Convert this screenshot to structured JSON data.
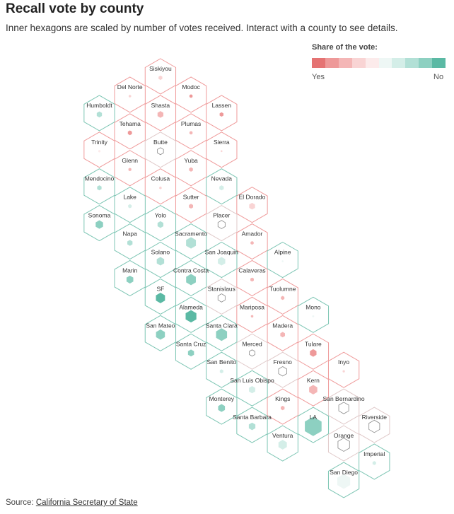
{
  "title": "Recall vote by county",
  "subtitle": "Inner hexagons are scaled by number of votes received. Interact with a county to see details.",
  "legend": {
    "title": "Share of the vote:",
    "yes_label": "Yes",
    "no_label": "No",
    "colors": [
      "#e57373",
      "#ee9999",
      "#f4b6b6",
      "#f9d4d4",
      "#fcebeb",
      "#eef7f5",
      "#d4eee8",
      "#b2e0d6",
      "#8dd0c1",
      "#5bb9a4"
    ]
  },
  "source": {
    "prefix": "Source: ",
    "link_text": "California Secretary of State"
  },
  "chart_data": {
    "type": "hex-tile-map",
    "title": "Recall vote by county",
    "encoding": {
      "lean": "Share of the vote leaning Yes (negative) or No (positive), -1 to 1, read from legend color",
      "votes": "Relative number of votes received (0 to 1), read from inner hexagon size"
    },
    "counties": [
      {
        "name": "Siskiyou",
        "col": 5,
        "row": 0,
        "lean": -0.35,
        "votes": 0.12
      },
      {
        "name": "Del Norte",
        "col": 4,
        "row": 1,
        "lean": -0.25,
        "votes": 0.05
      },
      {
        "name": "Modoc",
        "col": 6,
        "row": 1,
        "lean": -0.7,
        "votes": 0.08
      },
      {
        "name": "Humboldt",
        "col": 3,
        "row": 2,
        "lean": 0.5,
        "votes": 0.22
      },
      {
        "name": "Shasta",
        "col": 5,
        "row": 2,
        "lean": -0.6,
        "votes": 0.28
      },
      {
        "name": "Lassen",
        "col": 7,
        "row": 2,
        "lean": -0.85,
        "votes": 0.12
      },
      {
        "name": "Tehama",
        "col": 4,
        "row": 3,
        "lean": -0.7,
        "votes": 0.14
      },
      {
        "name": "Plumas",
        "col": 6,
        "row": 3,
        "lean": -0.45,
        "votes": 0.08
      },
      {
        "name": "Trinity",
        "col": 3,
        "row": 4,
        "lean": -0.2,
        "votes": 0.04
      },
      {
        "name": "Butte",
        "col": 5,
        "row": 4,
        "lean": 0.0,
        "votes": 0.3
      },
      {
        "name": "Sierra",
        "col": 7,
        "row": 4,
        "lean": -0.4,
        "votes": 0.02
      },
      {
        "name": "Glenn",
        "col": 4,
        "row": 5,
        "lean": -0.55,
        "votes": 0.07
      },
      {
        "name": "Yuba",
        "col": 6,
        "row": 5,
        "lean": -0.5,
        "votes": 0.12
      },
      {
        "name": "Mendocino",
        "col": 3,
        "row": 6,
        "lean": 0.55,
        "votes": 0.16
      },
      {
        "name": "Colusa",
        "col": 5,
        "row": 6,
        "lean": -0.4,
        "votes": 0.05
      },
      {
        "name": "Nevada",
        "col": 7,
        "row": 6,
        "lean": 0.25,
        "votes": 0.16
      },
      {
        "name": "Lake",
        "col": 4,
        "row": 7,
        "lean": 0.35,
        "votes": 0.1
      },
      {
        "name": "Sutter",
        "col": 6,
        "row": 7,
        "lean": -0.55,
        "votes": 0.14
      },
      {
        "name": "El Dorado",
        "col": 8,
        "row": 7,
        "lean": -0.35,
        "votes": 0.28
      },
      {
        "name": "Sonoma",
        "col": 3,
        "row": 8,
        "lean": 0.75,
        "votes": 0.45
      },
      {
        "name": "Yolo",
        "col": 5,
        "row": 8,
        "lean": 0.6,
        "votes": 0.28
      },
      {
        "name": "Placer",
        "col": 7,
        "row": 8,
        "lean": 0.0,
        "votes": 0.42
      },
      {
        "name": "Napa",
        "col": 4,
        "row": 9,
        "lean": 0.6,
        "votes": 0.22
      },
      {
        "name": "Sacramento",
        "col": 6,
        "row": 9,
        "lean": 0.45,
        "votes": 0.8
      },
      {
        "name": "Amador",
        "col": 8,
        "row": 9,
        "lean": -0.55,
        "votes": 0.08
      },
      {
        "name": "Solano",
        "col": 5,
        "row": 10,
        "lean": 0.45,
        "votes": 0.45
      },
      {
        "name": "San Joaquin",
        "col": 7,
        "row": 10,
        "lean": 0.3,
        "votes": 0.45
      },
      {
        "name": "Alpine",
        "col": 9,
        "row": 10,
        "lean": 0.2,
        "votes": 0.02
      },
      {
        "name": "Marin",
        "col": 4,
        "row": 11,
        "lean": 0.85,
        "votes": 0.38
      },
      {
        "name": "Contra Costa",
        "col": 6,
        "row": 11,
        "lean": 0.7,
        "votes": 0.78
      },
      {
        "name": "Calaveras",
        "col": 8,
        "row": 11,
        "lean": -0.5,
        "votes": 0.1
      },
      {
        "name": "SF",
        "col": 5,
        "row": 12,
        "lean": 1.0,
        "votes": 0.68
      },
      {
        "name": "Stanislaus",
        "col": 7,
        "row": 12,
        "lean": 0.0,
        "votes": 0.42
      },
      {
        "name": "Tuolumne",
        "col": 9,
        "row": 12,
        "lean": -0.5,
        "votes": 0.1
      },
      {
        "name": "Alameda",
        "col": 6,
        "row": 13,
        "lean": 0.95,
        "votes": 0.95
      },
      {
        "name": "Mariposa",
        "col": 8,
        "row": 13,
        "lean": -0.5,
        "votes": 0.05
      },
      {
        "name": "Mono",
        "col": 10,
        "row": 13,
        "lean": 0.15,
        "votes": 0.03
      },
      {
        "name": "San Mateo",
        "col": 5,
        "row": 14,
        "lean": 0.8,
        "votes": 0.65
      },
      {
        "name": "Santa Clara",
        "col": 7,
        "row": 14,
        "lean": 0.7,
        "votes": 1.0
      },
      {
        "name": "Madera",
        "col": 9,
        "row": 14,
        "lean": -0.55,
        "votes": 0.18
      },
      {
        "name": "Santa Cruz",
        "col": 6,
        "row": 15,
        "lean": 0.8,
        "votes": 0.3
      },
      {
        "name": "Merced",
        "col": 8,
        "row": 15,
        "lean": 0.0,
        "votes": 0.25
      },
      {
        "name": "Tulare",
        "col": 10,
        "row": 15,
        "lean": -0.7,
        "votes": 0.35
      },
      {
        "name": "San Benito",
        "col": 7,
        "row": 16,
        "lean": 0.3,
        "votes": 0.1
      },
      {
        "name": "Fresno",
        "col": 9,
        "row": 16,
        "lean": 0.0,
        "votes": 0.55
      },
      {
        "name": "Inyo",
        "col": 11,
        "row": 16,
        "lean": -0.3,
        "votes": 0.04
      },
      {
        "name": "San Luis Obispo",
        "col": 8,
        "row": 17,
        "lean": 0.35,
        "votes": 0.32
      },
      {
        "name": "Kern",
        "col": 10,
        "row": 17,
        "lean": -0.55,
        "votes": 0.55
      },
      {
        "name": "Monterey",
        "col": 7,
        "row": 18,
        "lean": 0.7,
        "votes": 0.38
      },
      {
        "name": "Kings",
        "col": 9,
        "row": 18,
        "lean": -0.65,
        "votes": 0.12
      },
      {
        "name": "San Bernardino",
        "col": 11,
        "row": 18,
        "lean": 0.0,
        "votes": 0.82
      },
      {
        "name": "Santa Barbara",
        "col": 8,
        "row": 19,
        "lean": 0.5,
        "votes": 0.35
      },
      {
        "name": "LA",
        "col": 10,
        "row": 19,
        "lean": 0.8,
        "votes": 2.3
      },
      {
        "name": "Riverside",
        "col": 12,
        "row": 19,
        "lean": 0.0,
        "votes": 0.95
      },
      {
        "name": "Ventura",
        "col": 9,
        "row": 20,
        "lean": 0.4,
        "votes": 0.58
      },
      {
        "name": "Orange",
        "col": 11,
        "row": 20,
        "lean": 0.0,
        "votes": 1.1
      },
      {
        "name": "Imperial",
        "col": 12,
        "row": 21,
        "lean": 0.4,
        "votes": 0.1
      },
      {
        "name": "San Diego",
        "col": 11,
        "row": 22,
        "lean": 0.2,
        "votes": 1.35
      }
    ]
  }
}
